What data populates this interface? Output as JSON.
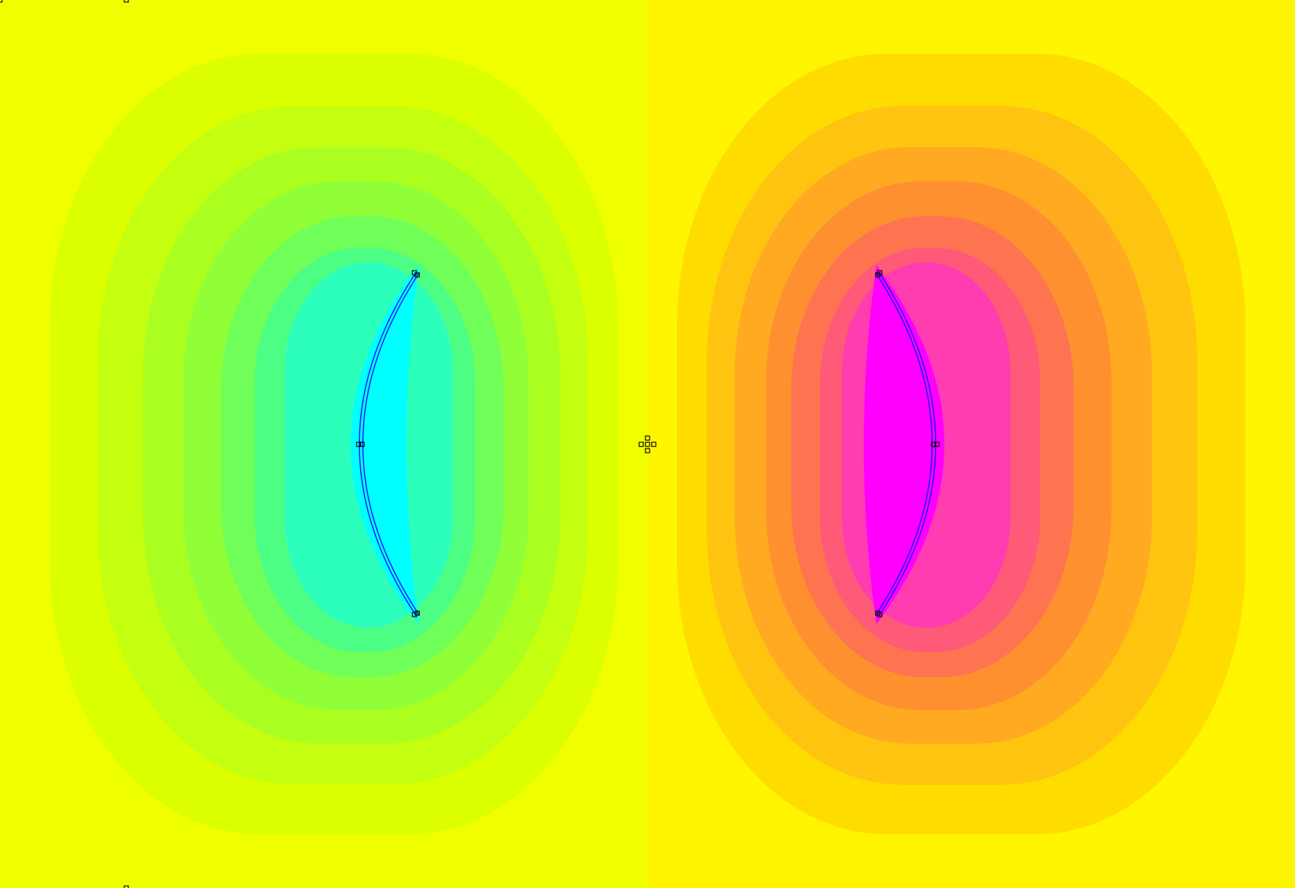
{
  "plot": {
    "background_left": "#f0ff00",
    "background_right": "#fff500",
    "left_lobe_levels": [
      "#dcff00",
      "#c4ff10",
      "#aaff20",
      "#90ff38",
      "#70ff58",
      "#4cff84",
      "#2cffbc",
      "#00ffff"
    ],
    "right_lobe_levels": [
      "#ffdc00",
      "#ffc410",
      "#ffaa20",
      "#ff9030",
      "#ff7450",
      "#ff5a78",
      "#ff3cb0",
      "#ff00ff"
    ],
    "boundary_line_color": "#1010ff",
    "node_marker_color": "#000000"
  }
}
